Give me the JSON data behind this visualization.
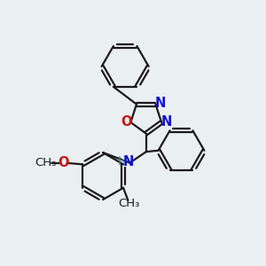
{
  "background_color": "#eaeff2",
  "bond_color": "#1a1a1a",
  "bond_width": 1.6,
  "N_color": "#1414cc",
  "O_color": "#cc1414",
  "H_color": "#3a8a8a",
  "font_size": 10.5,
  "figsize": [
    3.0,
    3.0
  ],
  "dpi": 100,
  "xlim": [
    0,
    10
  ],
  "ylim": [
    0,
    10
  ]
}
